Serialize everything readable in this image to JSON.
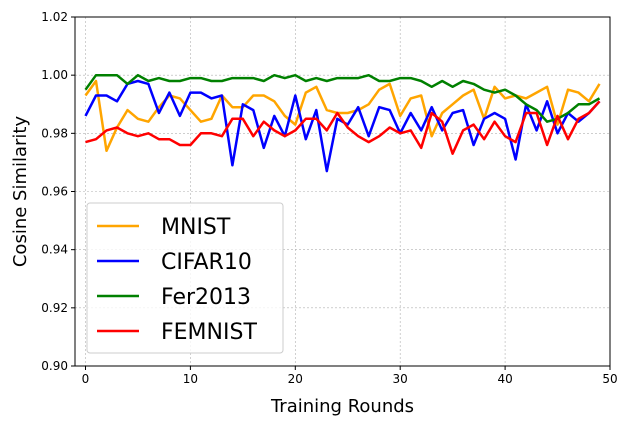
{
  "chart_data": {
    "type": "line",
    "xlabel": "Training Rounds",
    "ylabel": "Cosine Similarity",
    "xlim": [
      -1,
      50
    ],
    "ylim": [
      0.9,
      1.02
    ],
    "xticks": [
      0,
      10,
      20,
      30,
      40,
      50
    ],
    "yticks": [
      0.9,
      0.92,
      0.94,
      0.96,
      0.98,
      1.0,
      1.02
    ],
    "grid": true,
    "legend_position": "lower-left",
    "x": [
      0,
      1,
      2,
      3,
      4,
      5,
      6,
      7,
      8,
      9,
      10,
      11,
      12,
      13,
      14,
      15,
      16,
      17,
      18,
      19,
      20,
      21,
      22,
      23,
      24,
      25,
      26,
      27,
      28,
      29,
      30,
      31,
      32,
      33,
      34,
      35,
      36,
      37,
      38,
      39,
      40,
      41,
      42,
      43,
      44,
      45,
      46,
      47,
      48,
      49
    ],
    "series": [
      {
        "name": "MNIST",
        "color": "#FFA500",
        "values": [
          0.993,
          0.998,
          0.974,
          0.982,
          0.988,
          0.985,
          0.984,
          0.989,
          0.993,
          0.992,
          0.988,
          0.984,
          0.985,
          0.993,
          0.989,
          0.989,
          0.993,
          0.993,
          0.991,
          0.986,
          0.983,
          0.994,
          0.996,
          0.988,
          0.987,
          0.987,
          0.988,
          0.99,
          0.995,
          0.997,
          0.986,
          0.992,
          0.993,
          0.979,
          0.987,
          0.99,
          0.993,
          0.995,
          0.985,
          0.996,
          0.992,
          0.993,
          0.992,
          0.994,
          0.996,
          0.983,
          0.995,
          0.994,
          0.991,
          0.997
        ]
      },
      {
        "name": "CIFAR10",
        "color": "#0000FF",
        "values": [
          0.986,
          0.993,
          0.993,
          0.991,
          0.997,
          0.998,
          0.997,
          0.987,
          0.994,
          0.986,
          0.994,
          0.994,
          0.992,
          0.993,
          0.969,
          0.99,
          0.988,
          0.975,
          0.986,
          0.979,
          0.993,
          0.978,
          0.988,
          0.967,
          0.985,
          0.983,
          0.989,
          0.979,
          0.989,
          0.988,
          0.98,
          0.987,
          0.981,
          0.989,
          0.981,
          0.987,
          0.988,
          0.976,
          0.985,
          0.987,
          0.985,
          0.971,
          0.99,
          0.981,
          0.991,
          0.98,
          0.987,
          0.984,
          0.987,
          0.991
        ]
      },
      {
        "name": "Fer2013",
        "color": "#008000",
        "values": [
          0.995,
          1.0,
          1.0,
          1.0,
          0.997,
          1.0,
          0.998,
          0.999,
          0.998,
          0.998,
          0.999,
          0.999,
          0.998,
          0.998,
          0.999,
          0.999,
          0.999,
          0.998,
          1.0,
          0.999,
          1.0,
          0.998,
          0.999,
          0.998,
          0.999,
          0.999,
          0.999,
          1.0,
          0.998,
          0.998,
          0.999,
          0.999,
          0.998,
          0.996,
          0.998,
          0.996,
          0.998,
          0.997,
          0.995,
          0.994,
          0.995,
          0.993,
          0.99,
          0.988,
          0.984,
          0.985,
          0.987,
          0.99,
          0.99,
          0.992
        ]
      },
      {
        "name": "FEMNIST",
        "color": "#FF0000",
        "values": [
          0.977,
          0.978,
          0.981,
          0.982,
          0.98,
          0.979,
          0.98,
          0.978,
          0.978,
          0.976,
          0.976,
          0.98,
          0.98,
          0.979,
          0.985,
          0.985,
          0.979,
          0.984,
          0.981,
          0.979,
          0.981,
          0.985,
          0.985,
          0.981,
          0.987,
          0.982,
          0.979,
          0.977,
          0.979,
          0.982,
          0.98,
          0.981,
          0.975,
          0.987,
          0.984,
          0.973,
          0.981,
          0.983,
          0.978,
          0.984,
          0.979,
          0.977,
          0.987,
          0.987,
          0.976,
          0.986,
          0.978,
          0.985,
          0.987,
          0.991
        ]
      }
    ]
  }
}
